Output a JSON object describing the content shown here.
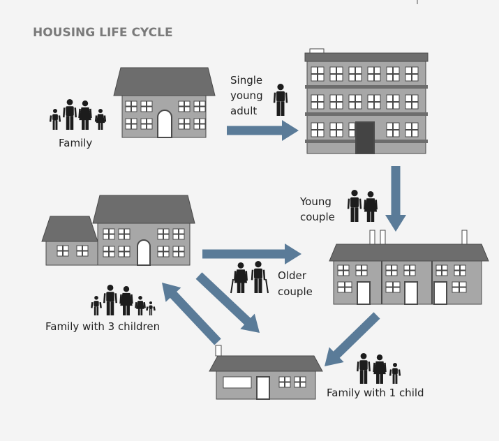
{
  "title": "HOUSING LIFE CYCLE",
  "stages": [
    {
      "label": [
        "Family"
      ]
    },
    {
      "label": [
        "Single",
        "young",
        "adult"
      ]
    },
    {
      "label": [
        "Young",
        "couple"
      ]
    },
    {
      "label": [
        "Older",
        "couple"
      ]
    },
    {
      "label": [
        "Family with 3 children"
      ]
    },
    {
      "label": [
        "Family with 1 child"
      ]
    }
  ]
}
